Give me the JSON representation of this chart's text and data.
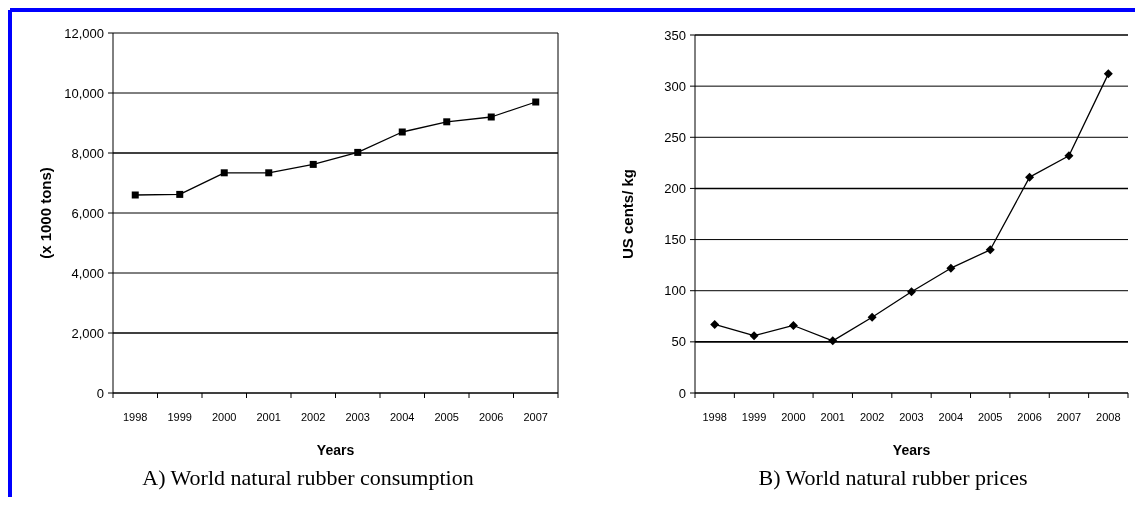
{
  "chart_data": [
    {
      "type": "line",
      "title": "A) World natural rubber consumption",
      "xlabel": "Years",
      "ylabel": "(x 1000 tons)",
      "categories": [
        "1998",
        "1999",
        "2000",
        "2001",
        "2002",
        "2003",
        "2004",
        "2005",
        "2006",
        "2007"
      ],
      "series": [
        {
          "color": "#000000",
          "values": [
            6600,
            6620,
            7340,
            7340,
            7620,
            8020,
            8700,
            9040,
            9200,
            9700
          ]
        }
      ],
      "ylim": [
        0,
        12000
      ],
      "yticks": [
        {
          "value": 0,
          "label": "0"
        },
        {
          "value": 2000,
          "label": "2,000"
        },
        {
          "value": 4000,
          "label": "4,000"
        },
        {
          "value": 6000,
          "label": "6,000"
        },
        {
          "value": 8000,
          "label": "8,000"
        },
        {
          "value": 10000,
          "label": "10,000"
        },
        {
          "value": 12000,
          "label": "12,000"
        }
      ],
      "grid": "y",
      "marker": "square"
    },
    {
      "type": "line",
      "title": "B) World natural rubber prices",
      "xlabel": "Years",
      "ylabel": "US cents/ kg",
      "categories": [
        "1998",
        "1999",
        "2000",
        "2001",
        "2002",
        "2003",
        "2004",
        "2005",
        "2006",
        "2007",
        "2008"
      ],
      "series": [
        {
          "color": "#000000",
          "values": [
            67,
            56,
            66,
            51,
            74,
            99,
            122,
            140,
            211,
            232,
            312
          ]
        }
      ],
      "ylim": [
        0,
        350
      ],
      "yticks": [
        0,
        50,
        100,
        150,
        200,
        250,
        300,
        350
      ],
      "grid": "y",
      "marker": "diamond"
    }
  ]
}
